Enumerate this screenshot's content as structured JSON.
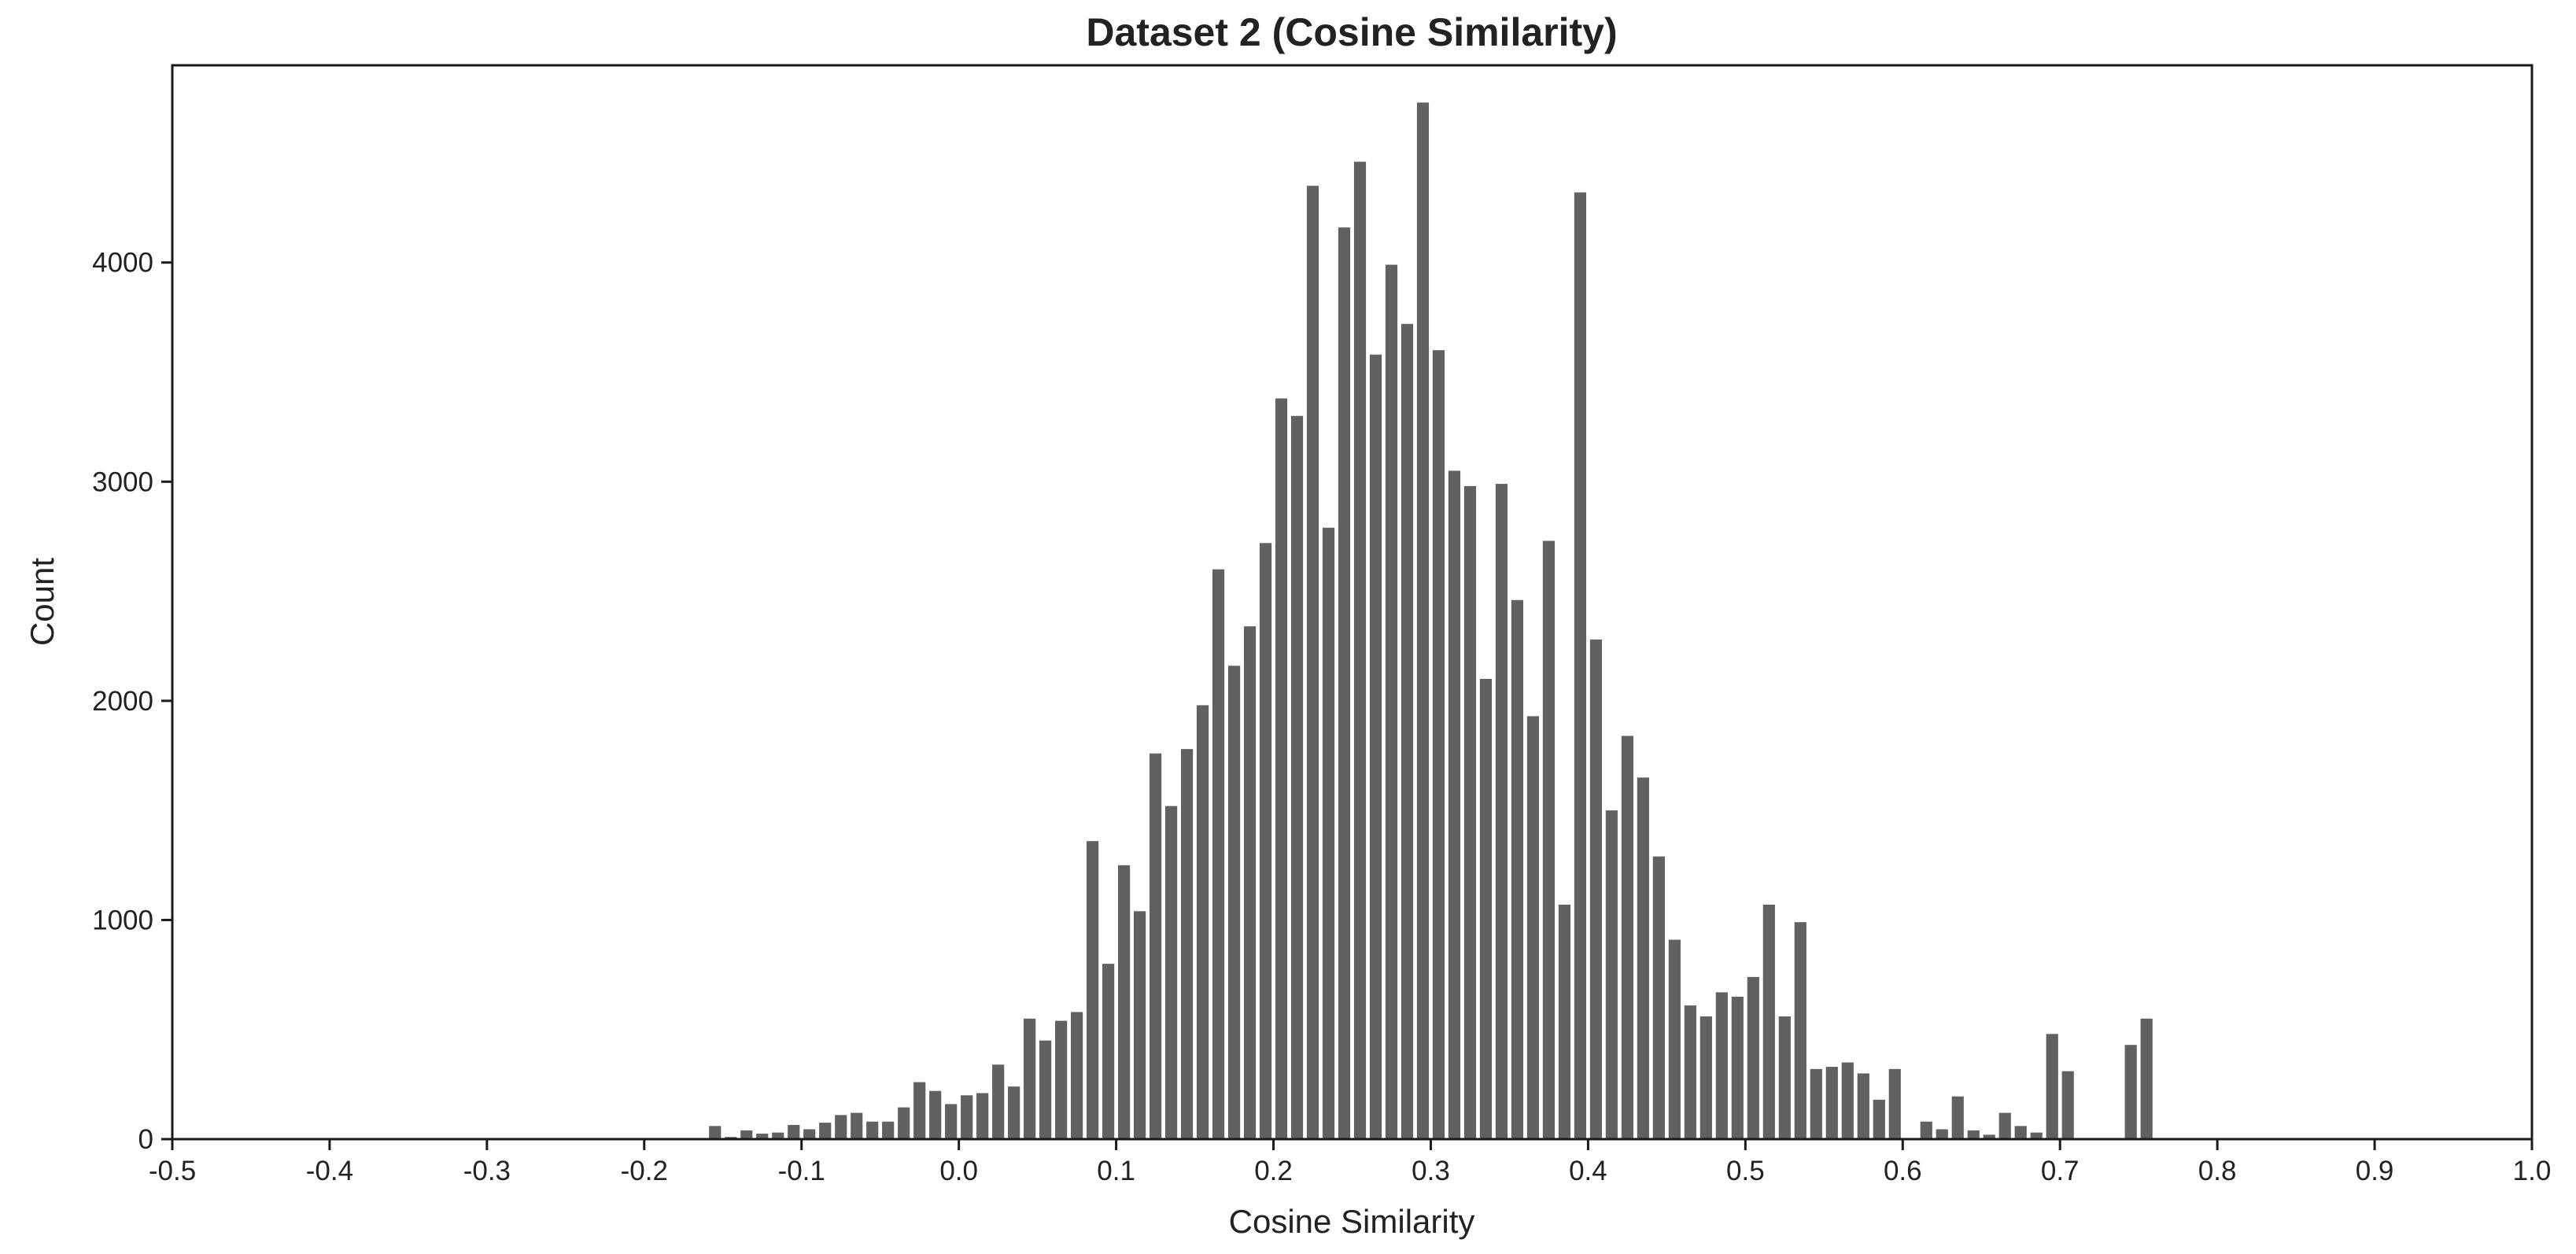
{
  "chart_data": {
    "type": "bar",
    "title": "Dataset 2 (Cosine Similarity)",
    "xlabel": "Cosine Similarity",
    "ylabel": "Count",
    "xlim": [
      -0.5,
      1.0
    ],
    "ylim": [
      0,
      4900
    ],
    "bin_width": 0.01,
    "x_ticks": [
      {
        "value": -0.5,
        "label": "-0.5"
      },
      {
        "value": -0.4,
        "label": "-0.4"
      },
      {
        "value": -0.3,
        "label": "-0.3"
      },
      {
        "value": -0.2,
        "label": "-0.2"
      },
      {
        "value": -0.1,
        "label": "-0.1"
      },
      {
        "value": 0.0,
        "label": "0.0"
      },
      {
        "value": 0.1,
        "label": "0.1"
      },
      {
        "value": 0.2,
        "label": "0.2"
      },
      {
        "value": 0.3,
        "label": "0.3"
      },
      {
        "value": 0.4,
        "label": "0.4"
      },
      {
        "value": 0.5,
        "label": "0.5"
      },
      {
        "value": 0.6,
        "label": "0.6"
      },
      {
        "value": 0.7,
        "label": "0.7"
      },
      {
        "value": 0.8,
        "label": "0.8"
      },
      {
        "value": 0.9,
        "label": "0.9"
      },
      {
        "value": 1.0,
        "label": "1.0"
      }
    ],
    "y_ticks": [
      {
        "value": 0,
        "label": "0"
      },
      {
        "value": 1000,
        "label": "1000"
      },
      {
        "value": 2000,
        "label": "2000"
      },
      {
        "value": 3000,
        "label": "3000"
      },
      {
        "value": 4000,
        "label": "4000"
      }
    ],
    "grid": false,
    "bar_color": "#616161",
    "bins": [
      {
        "x": -0.155,
        "count": 60
      },
      {
        "x": -0.145,
        "count": 10
      },
      {
        "x": -0.135,
        "count": 40
      },
      {
        "x": -0.125,
        "count": 25
      },
      {
        "x": -0.115,
        "count": 30
      },
      {
        "x": -0.105,
        "count": 65
      },
      {
        "x": -0.095,
        "count": 45
      },
      {
        "x": -0.085,
        "count": 75
      },
      {
        "x": -0.075,
        "count": 110
      },
      {
        "x": -0.065,
        "count": 120
      },
      {
        "x": -0.055,
        "count": 80
      },
      {
        "x": -0.045,
        "count": 80
      },
      {
        "x": -0.035,
        "count": 145
      },
      {
        "x": -0.025,
        "count": 260
      },
      {
        "x": -0.015,
        "count": 220
      },
      {
        "x": -0.005,
        "count": 160
      },
      {
        "x": 0.005,
        "count": 200
      },
      {
        "x": 0.015,
        "count": 210
      },
      {
        "x": 0.025,
        "count": 340
      },
      {
        "x": 0.035,
        "count": 240
      },
      {
        "x": 0.045,
        "count": 550
      },
      {
        "x": 0.055,
        "count": 450
      },
      {
        "x": 0.065,
        "count": 540
      },
      {
        "x": 0.075,
        "count": 580
      },
      {
        "x": 0.085,
        "count": 1360
      },
      {
        "x": 0.095,
        "count": 800
      },
      {
        "x": 0.105,
        "count": 1250
      },
      {
        "x": 0.115,
        "count": 1040
      },
      {
        "x": 0.125,
        "count": 1760
      },
      {
        "x": 0.135,
        "count": 1520
      },
      {
        "x": 0.145,
        "count": 1780
      },
      {
        "x": 0.155,
        "count": 1980
      },
      {
        "x": 0.165,
        "count": 2600
      },
      {
        "x": 0.175,
        "count": 2160
      },
      {
        "x": 0.185,
        "count": 2340
      },
      {
        "x": 0.195,
        "count": 2720
      },
      {
        "x": 0.205,
        "count": 3380
      },
      {
        "x": 0.215,
        "count": 3300
      },
      {
        "x": 0.225,
        "count": 4350
      },
      {
        "x": 0.235,
        "count": 2790
      },
      {
        "x": 0.245,
        "count": 4160
      },
      {
        "x": 0.255,
        "count": 4460
      },
      {
        "x": 0.265,
        "count": 3580
      },
      {
        "x": 0.275,
        "count": 3990
      },
      {
        "x": 0.285,
        "count": 3720
      },
      {
        "x": 0.295,
        "count": 4730
      },
      {
        "x": 0.305,
        "count": 3600
      },
      {
        "x": 0.315,
        "count": 3050
      },
      {
        "x": 0.325,
        "count": 2980
      },
      {
        "x": 0.335,
        "count": 2100
      },
      {
        "x": 0.345,
        "count": 2990
      },
      {
        "x": 0.355,
        "count": 2460
      },
      {
        "x": 0.365,
        "count": 1930
      },
      {
        "x": 0.375,
        "count": 2730
      },
      {
        "x": 0.385,
        "count": 1070
      },
      {
        "x": 0.395,
        "count": 4320
      },
      {
        "x": 0.405,
        "count": 2280
      },
      {
        "x": 0.415,
        "count": 1500
      },
      {
        "x": 0.425,
        "count": 1840
      },
      {
        "x": 0.435,
        "count": 1650
      },
      {
        "x": 0.445,
        "count": 1290
      },
      {
        "x": 0.455,
        "count": 910
      },
      {
        "x": 0.465,
        "count": 610
      },
      {
        "x": 0.475,
        "count": 560
      },
      {
        "x": 0.485,
        "count": 670
      },
      {
        "x": 0.495,
        "count": 650
      },
      {
        "x": 0.505,
        "count": 740
      },
      {
        "x": 0.515,
        "count": 1070
      },
      {
        "x": 0.525,
        "count": 560
      },
      {
        "x": 0.535,
        "count": 990
      },
      {
        "x": 0.545,
        "count": 320
      },
      {
        "x": 0.555,
        "count": 330
      },
      {
        "x": 0.565,
        "count": 350
      },
      {
        "x": 0.575,
        "count": 300
      },
      {
        "x": 0.585,
        "count": 180
      },
      {
        "x": 0.595,
        "count": 320
      },
      {
        "x": 0.615,
        "count": 80
      },
      {
        "x": 0.625,
        "count": 45
      },
      {
        "x": 0.635,
        "count": 195
      },
      {
        "x": 0.645,
        "count": 40
      },
      {
        "x": 0.655,
        "count": 20
      },
      {
        "x": 0.665,
        "count": 120
      },
      {
        "x": 0.675,
        "count": 60
      },
      {
        "x": 0.685,
        "count": 30
      },
      {
        "x": 0.695,
        "count": 480
      },
      {
        "x": 0.705,
        "count": 310
      },
      {
        "x": 0.745,
        "count": 430
      },
      {
        "x": 0.755,
        "count": 550
      }
    ]
  }
}
